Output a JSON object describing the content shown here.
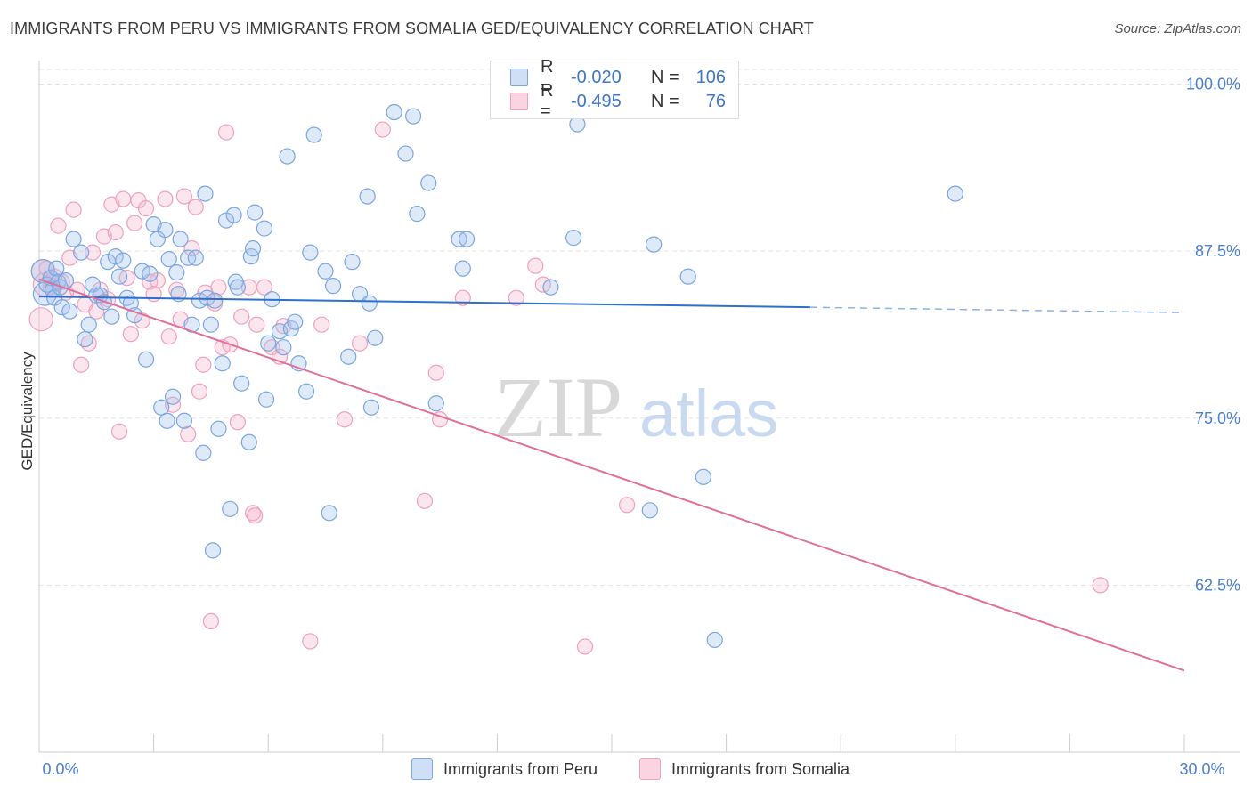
{
  "header": {
    "title": "IMMIGRANTS FROM PERU VS IMMIGRANTS FROM SOMALIA GED/EQUIVALENCY CORRELATION CHART",
    "source": "Source: ZipAtlas.com"
  },
  "watermark": {
    "zip": "ZIP",
    "atlas": "atlas"
  },
  "legend": {
    "rows": [
      {
        "r_label": "R =",
        "r_value": "-0.020",
        "n_label": "N =",
        "n_value": "106",
        "color": "#7aa6e0"
      },
      {
        "r_label": "R =",
        "r_value": "-0.495",
        "n_label": "N =",
        "n_value": "76",
        "color": "#f0a0bd"
      }
    ]
  },
  "bottom_legend": [
    {
      "label": "Immigrants from Peru",
      "color": "#7aa6e0"
    },
    {
      "label": "Immigrants from Somalia",
      "color": "#f0a0bd"
    }
  ],
  "chart_data": {
    "type": "scatter",
    "title": "IMMIGRANTS FROM PERU VS IMMIGRANTS FROM SOMALIA GED/EQUIVALENCY CORRELATION CHART",
    "xlabel": "",
    "ylabel": "GED/Equivalency",
    "xlim": [
      0,
      30
    ],
    "ylim": [
      50,
      101.5
    ],
    "x_tick_labels": [
      {
        "value": 0,
        "label": "0.0%"
      },
      {
        "value": 30,
        "label": "30.0%"
      }
    ],
    "y_tick_labels": [
      {
        "value": 100,
        "label": "100.0%"
      },
      {
        "value": 87.5,
        "label": "87.5%"
      },
      {
        "value": 75,
        "label": "75.0%"
      },
      {
        "value": 62.5,
        "label": "62.5%"
      }
    ],
    "grid": true,
    "legend_position": "top-center",
    "series": [
      {
        "name": "Immigrants from Peru",
        "color": "#7aa6e0",
        "trend": {
          "x0": 0,
          "y0": 84.1,
          "x1": 20.2,
          "y1": 83.3,
          "dash_to_x": 30,
          "dash_to_y": 82.9
        },
        "points": [
          [
            0.1,
            86.0
          ],
          [
            0.15,
            84.3
          ],
          [
            0.2,
            85.0
          ],
          [
            0.3,
            85.5
          ],
          [
            0.35,
            84.6
          ],
          [
            0.4,
            84.0
          ],
          [
            0.45,
            86.2
          ],
          [
            0.5,
            85.2
          ],
          [
            0.55,
            84.8
          ],
          [
            0.6,
            83.3
          ],
          [
            0.7,
            85.3
          ],
          [
            0.8,
            83.0
          ],
          [
            0.9,
            88.4
          ],
          [
            1.1,
            87.4
          ],
          [
            1.2,
            80.9
          ],
          [
            1.3,
            82.0
          ],
          [
            1.4,
            85.0
          ],
          [
            1.5,
            84.2
          ],
          [
            1.6,
            84.2
          ],
          [
            1.7,
            83.7
          ],
          [
            1.8,
            86.7
          ],
          [
            1.9,
            82.6
          ],
          [
            2.0,
            87.1
          ],
          [
            2.1,
            85.6
          ],
          [
            2.2,
            86.8
          ],
          [
            2.3,
            84.0
          ],
          [
            2.4,
            83.6
          ],
          [
            2.5,
            82.7
          ],
          [
            2.7,
            86.0
          ],
          [
            2.8,
            79.4
          ],
          [
            2.9,
            85.8
          ],
          [
            3.0,
            89.5
          ],
          [
            3.1,
            88.4
          ],
          [
            3.2,
            75.8
          ],
          [
            3.3,
            89.1
          ],
          [
            3.35,
            74.8
          ],
          [
            3.4,
            86.9
          ],
          [
            3.5,
            76.6
          ],
          [
            3.6,
            85.9
          ],
          [
            3.65,
            84.3
          ],
          [
            3.7,
            88.4
          ],
          [
            3.8,
            74.8
          ],
          [
            3.9,
            87.0
          ],
          [
            4.0,
            82.0
          ],
          [
            4.1,
            87.0
          ],
          [
            4.2,
            83.8
          ],
          [
            4.3,
            72.4
          ],
          [
            4.35,
            91.8
          ],
          [
            4.4,
            84.0
          ],
          [
            4.5,
            82.0
          ],
          [
            4.55,
            65.1
          ],
          [
            4.6,
            83.8
          ],
          [
            4.7,
            74.2
          ],
          [
            4.8,
            79.1
          ],
          [
            4.9,
            89.8
          ],
          [
            5.0,
            68.2
          ],
          [
            5.1,
            90.2
          ],
          [
            5.15,
            85.2
          ],
          [
            5.2,
            84.8
          ],
          [
            5.3,
            77.6
          ],
          [
            5.5,
            73.2
          ],
          [
            5.55,
            87.1
          ],
          [
            5.6,
            87.7
          ],
          [
            5.65,
            90.4
          ],
          [
            5.9,
            89.2
          ],
          [
            5.95,
            76.4
          ],
          [
            6.0,
            80.6
          ],
          [
            6.1,
            83.9
          ],
          [
            6.3,
            81.5
          ],
          [
            6.4,
            80.3
          ],
          [
            6.5,
            94.6
          ],
          [
            6.6,
            81.7
          ],
          [
            6.7,
            82.2
          ],
          [
            6.8,
            79.1
          ],
          [
            7.0,
            77.0
          ],
          [
            7.1,
            87.4
          ],
          [
            7.2,
            96.2
          ],
          [
            7.5,
            86.0
          ],
          [
            7.6,
            67.9
          ],
          [
            7.7,
            84.9
          ],
          [
            8.1,
            79.6
          ],
          [
            8.2,
            86.7
          ],
          [
            8.4,
            84.3
          ],
          [
            8.6,
            91.6
          ],
          [
            8.65,
            83.6
          ],
          [
            8.7,
            75.8
          ],
          [
            8.8,
            81.0
          ],
          [
            9.3,
            97.9
          ],
          [
            9.6,
            94.8
          ],
          [
            9.8,
            97.6
          ],
          [
            9.9,
            90.3
          ],
          [
            10.2,
            92.6
          ],
          [
            10.4,
            76.1
          ],
          [
            11.0,
            88.4
          ],
          [
            11.1,
            86.2
          ],
          [
            11.2,
            88.4
          ],
          [
            12.7,
            98.2
          ],
          [
            13.4,
            84.8
          ],
          [
            14.0,
            88.5
          ],
          [
            14.1,
            97.0
          ],
          [
            16.0,
            68.1
          ],
          [
            16.1,
            88.0
          ],
          [
            17.0,
            85.6
          ],
          [
            17.4,
            70.6
          ],
          [
            17.7,
            58.4
          ],
          [
            24.0,
            91.8
          ]
        ]
      },
      {
        "name": "Immigrants from Somalia",
        "color": "#f0a0bd",
        "trend": {
          "x0": 0,
          "y0": 85.4,
          "x1": 30,
          "y1": 56.1
        },
        "points": [
          [
            0.05,
            82.4
          ],
          [
            0.1,
            86.0
          ],
          [
            0.15,
            85.0
          ],
          [
            0.2,
            86.2
          ],
          [
            0.3,
            84.8
          ],
          [
            0.4,
            85.6
          ],
          [
            0.5,
            89.4
          ],
          [
            0.6,
            85.2
          ],
          [
            0.7,
            84.4
          ],
          [
            0.8,
            87.0
          ],
          [
            0.9,
            90.6
          ],
          [
            1.0,
            84.6
          ],
          [
            1.1,
            79.0
          ],
          [
            1.2,
            83.5
          ],
          [
            1.3,
            80.6
          ],
          [
            1.4,
            87.4
          ],
          [
            1.5,
            83.0
          ],
          [
            1.6,
            84.6
          ],
          [
            1.7,
            88.6
          ],
          [
            1.8,
            83.9
          ],
          [
            1.9,
            91.0
          ],
          [
            2.0,
            88.9
          ],
          [
            2.1,
            74.0
          ],
          [
            2.2,
            91.4
          ],
          [
            2.3,
            85.5
          ],
          [
            2.4,
            81.3
          ],
          [
            2.5,
            89.6
          ],
          [
            2.6,
            91.3
          ],
          [
            2.7,
            82.3
          ],
          [
            2.8,
            90.7
          ],
          [
            2.9,
            85.2
          ],
          [
            3.0,
            84.3
          ],
          [
            3.1,
            85.3
          ],
          [
            3.3,
            91.4
          ],
          [
            3.4,
            81.1
          ],
          [
            3.5,
            76.0
          ],
          [
            3.6,
            84.6
          ],
          [
            3.7,
            82.4
          ],
          [
            3.8,
            91.6
          ],
          [
            3.9,
            73.8
          ],
          [
            4.0,
            87.7
          ],
          [
            4.1,
            90.8
          ],
          [
            4.2,
            77.0
          ],
          [
            4.3,
            79.0
          ],
          [
            4.35,
            84.4
          ],
          [
            4.5,
            59.8
          ],
          [
            4.6,
            83.6
          ],
          [
            4.7,
            84.8
          ],
          [
            4.8,
            80.3
          ],
          [
            4.9,
            96.4
          ],
          [
            5.0,
            80.5
          ],
          [
            5.2,
            74.7
          ],
          [
            5.3,
            82.6
          ],
          [
            5.5,
            84.8
          ],
          [
            5.6,
            67.9
          ],
          [
            5.65,
            67.7
          ],
          [
            5.7,
            82.0
          ],
          [
            5.9,
            84.8
          ],
          [
            6.1,
            80.3
          ],
          [
            6.3,
            79.6
          ],
          [
            6.4,
            81.9
          ],
          [
            7.1,
            58.3
          ],
          [
            7.4,
            82.0
          ],
          [
            8.0,
            74.9
          ],
          [
            8.4,
            80.6
          ],
          [
            9.0,
            96.6
          ],
          [
            10.1,
            68.8
          ],
          [
            10.4,
            78.4
          ],
          [
            10.5,
            74.9
          ],
          [
            11.1,
            84.0
          ],
          [
            12.5,
            84.0
          ],
          [
            13.0,
            86.4
          ],
          [
            13.2,
            85.0
          ],
          [
            14.3,
            57.9
          ],
          [
            15.4,
            68.5
          ],
          [
            27.8,
            62.5
          ]
        ]
      }
    ]
  }
}
